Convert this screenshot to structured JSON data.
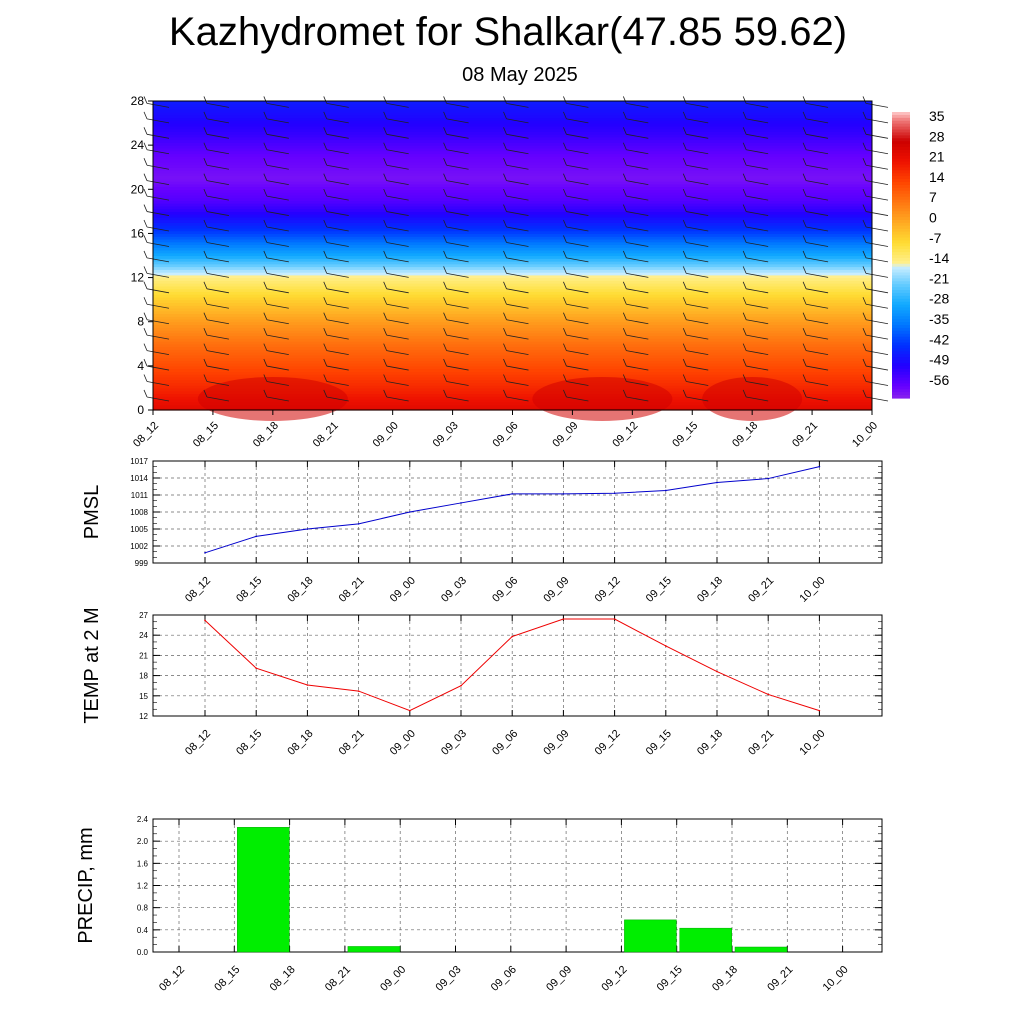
{
  "title": "Kazhydromet for Shalkar(47.85 59.62)",
  "subtitle": "08 May 2025",
  "colors": {
    "pmsl_line": "#0000cc",
    "temp_line": "#ee0000",
    "precip_bar": "#00ee00"
  },
  "chart_data": [
    {
      "type": "heatmap",
      "title": "",
      "x": [
        "08_12",
        "08_15",
        "08_18",
        "08_21",
        "09_00",
        "09_03",
        "09_06",
        "09_09",
        "09_12",
        "09_15",
        "09_18",
        "09_21",
        "10_00"
      ],
      "y_ticks": [
        0,
        4,
        8,
        12,
        16,
        20,
        24,
        28
      ],
      "ylim": [
        0,
        28
      ],
      "colorbar_labels": [
        "35",
        "28",
        "21",
        "14",
        "7",
        "0",
        "-7",
        "-14",
        "-21",
        "-28",
        "-35",
        "-42",
        "-49",
        "-56"
      ],
      "colorbar_range": [
        -60,
        38
      ],
      "wind_barbs": true,
      "grid": false
    },
    {
      "type": "line",
      "ylabel": "PMSL",
      "categories": [
        "08_12",
        "08_15",
        "08_18",
        "08_21",
        "09_00",
        "09_03",
        "09_06",
        "09_09",
        "09_12",
        "09_15",
        "09_18",
        "09_21",
        "10_00"
      ],
      "values": [
        1000.8,
        1003.7,
        1005.0,
        1005.9,
        1008.0,
        1009.6,
        1011.2,
        1011.2,
        1011.3,
        1011.8,
        1013.2,
        1013.9,
        1016.0
      ],
      "ylim": [
        999,
        1017
      ],
      "y_ticks": [
        999,
        1002,
        1005,
        1008,
        1011,
        1014,
        1017
      ],
      "grid": true
    },
    {
      "type": "line",
      "ylabel": "TEMP at 2 M",
      "categories": [
        "08_12",
        "08_15",
        "08_18",
        "08_21",
        "09_00",
        "09_03",
        "09_06",
        "09_09",
        "09_12",
        "09_15",
        "09_18",
        "09_21",
        "10_00"
      ],
      "values": [
        26.2,
        19.1,
        16.6,
        15.7,
        12.8,
        16.5,
        23.8,
        26.4,
        26.4,
        22.4,
        18.6,
        15.2,
        12.8
      ],
      "ylim": [
        12,
        27
      ],
      "y_ticks": [
        12,
        15,
        18,
        21,
        24,
        27
      ],
      "grid": true
    },
    {
      "type": "bar",
      "ylabel": "PRECIP, mm",
      "categories": [
        "08_12",
        "08_15",
        "08_18",
        "08_21",
        "09_00",
        "09_03",
        "09_06",
        "09_09",
        "09_12",
        "09_15",
        "09_18",
        "09_21",
        "10_00"
      ],
      "values": [
        0,
        2.25,
        0,
        0.1,
        0,
        0,
        0,
        0,
        0.58,
        0.43,
        0.09,
        0,
        0
      ],
      "ylim": [
        0,
        2.4
      ],
      "y_ticks": [
        "0.0",
        "0.4",
        "0.8",
        "1.2",
        "1.6",
        "2.0",
        "2.4"
      ],
      "grid": true
    }
  ]
}
